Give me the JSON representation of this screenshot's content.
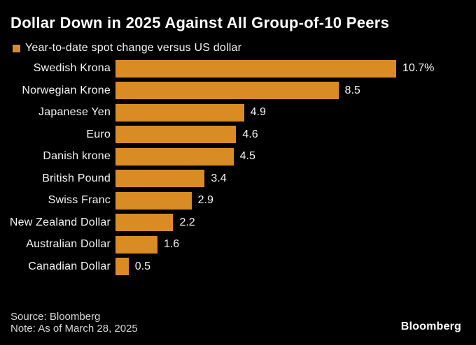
{
  "title": "Dollar Down in 2025 Against All Group-of-10 Peers",
  "legend": {
    "swatch_icon": "orange-square-swatch",
    "label": "Year-to-date spot change versus US dollar"
  },
  "chart_data": {
    "type": "bar",
    "orientation": "horizontal",
    "title": "Dollar Down in 2025 Against All Group-of-10 Peers",
    "legend_label": "Year-to-date spot change versus US dollar",
    "categories": [
      "Swedish Krona",
      "Norwegian Krone",
      "Japanese Yen",
      "Euro",
      "Danish krone",
      "British Pound",
      "Swiss Franc",
      "New Zealand Dollar",
      "Australian Dollar",
      "Canadian Dollar"
    ],
    "values": [
      10.7,
      8.5,
      4.9,
      4.6,
      4.5,
      3.4,
      2.9,
      2.2,
      1.6,
      0.5
    ],
    "value_labels": [
      "10.7%",
      "8.5",
      "4.9",
      "4.6",
      "4.5",
      "3.4",
      "2.9",
      "2.2",
      "1.6",
      "0.5"
    ],
    "unit": "%",
    "xlim": [
      0,
      10.7
    ],
    "bar_color": "#da8c24",
    "background_color": "#000000",
    "grid": false,
    "legend_position": "top-left"
  },
  "footer": {
    "source": "Source: Bloomberg",
    "note": "Note: As of March 28, 2025",
    "brand": "Bloomberg"
  }
}
